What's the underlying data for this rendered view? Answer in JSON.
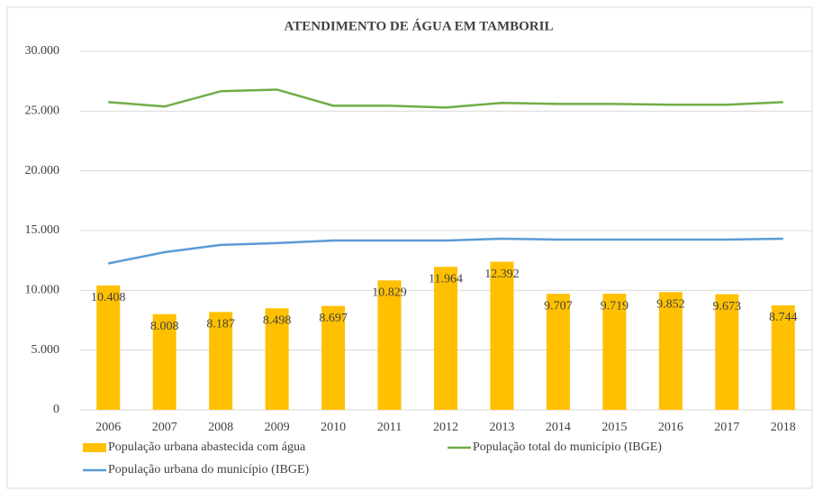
{
  "chart_data": {
    "type": "bar",
    "title": "ATENDIMENTO DE ÁGUA EM TAMBORIL",
    "categories": [
      "2006",
      "2007",
      "2008",
      "2009",
      "2010",
      "2011",
      "2012",
      "2013",
      "2014",
      "2015",
      "2016",
      "2017",
      "2018"
    ],
    "series": [
      {
        "name": "População urbana abastecida com água",
        "type": "bar",
        "color": "#ffc000",
        "values": [
          10408,
          8008,
          8187,
          8498,
          8697,
          10829,
          11964,
          12392,
          9707,
          9719,
          9852,
          9673,
          8744
        ],
        "value_labels": [
          "10.408",
          "8.008",
          "8.187",
          "8.498",
          "8.697",
          "10.829",
          "11.964",
          "12.392",
          "9.707",
          "9.719",
          "9.852",
          "9.673",
          "8.744"
        ]
      },
      {
        "name": "População total do município (IBGE)",
        "type": "line",
        "color": "#70ad47",
        "values": [
          25750,
          25380,
          26660,
          26800,
          25450,
          25450,
          25300,
          25680,
          25600,
          25600,
          25530,
          25530,
          25750
        ]
      },
      {
        "name": "População urbana do município (IBGE)",
        "type": "line",
        "color": "#5b9bd5",
        "values": [
          12250,
          13190,
          13800,
          13950,
          14170,
          14170,
          14170,
          14320,
          14250,
          14250,
          14250,
          14250,
          14320
        ]
      }
    ],
    "ylim": [
      0,
      30000
    ],
    "yticks": [
      0,
      {
        "value": 5000,
        "label": "5.000"
      },
      {
        "value": 10000,
        "label": "10.000"
      },
      {
        "value": 15000,
        "label": "15.000"
      },
      {
        "value": 20000,
        "label": "20.000"
      },
      {
        "value": 25000,
        "label": "25.000"
      },
      {
        "value": 30000,
        "label": "30.000"
      }
    ],
    "grid": true
  }
}
